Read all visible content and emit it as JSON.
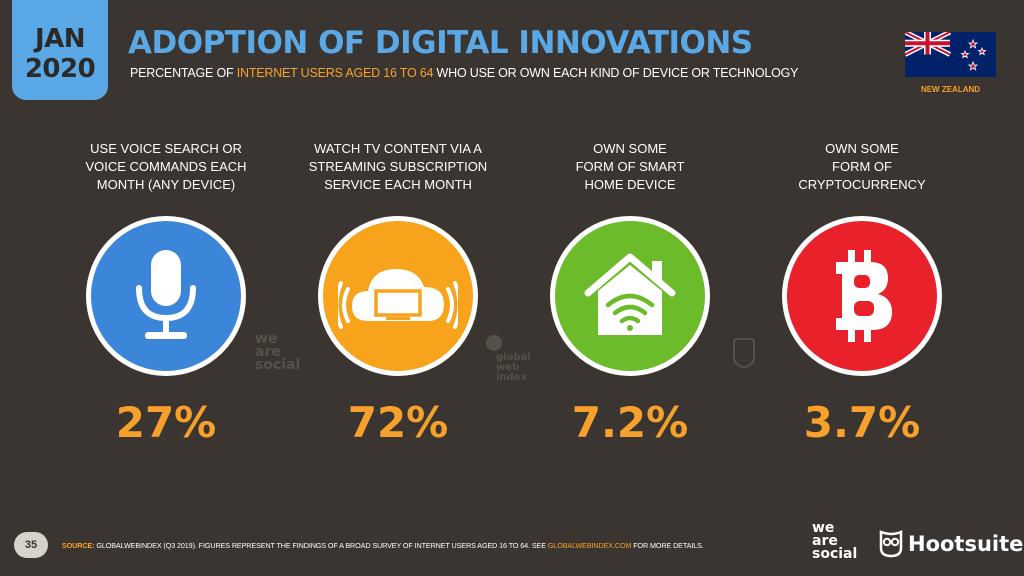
{
  "header": {
    "date_month": "JAN",
    "date_year": "2020",
    "title": "ADOPTION OF DIGITAL INNOVATIONS",
    "subtitle_pre": "PERCENTAGE OF ",
    "subtitle_highlight": "INTERNET USERS AGED 16 TO 64",
    "subtitle_post": " WHO USE OR OWN EACH KIND OF DEVICE OR TECHNOLOGY",
    "country": "NEW ZEALAND"
  },
  "items": [
    {
      "caption_lines": [
        "USE VOICE SEARCH OR",
        "VOICE COMMANDS EACH",
        "MONTH (ANY DEVICE)"
      ],
      "value": "27%",
      "icon": "microphone-icon",
      "color": "#3b86d9"
    },
    {
      "caption_lines": [
        "WATCH TV CONTENT VIA A",
        "STREAMING SUBSCRIPTION",
        "SERVICE EACH MONTH"
      ],
      "value": "72%",
      "icon": "cloud-tv-icon",
      "color": "#f7a31c"
    },
    {
      "caption_lines": [
        "OWN SOME",
        "FORM OF SMART",
        "HOME DEVICE"
      ],
      "value": "7.2%",
      "icon": "smart-home-icon",
      "color": "#6cbb2a"
    },
    {
      "caption_lines": [
        "OWN SOME",
        "FORM OF",
        "CRYPTOCURRENCY"
      ],
      "value": "3.7%",
      "icon": "bitcoin-icon",
      "color": "#e8212b"
    }
  ],
  "watermarks": {
    "we_are_social": [
      "we",
      "are",
      "social"
    ],
    "global_web_index": [
      "global",
      "web",
      "index"
    ]
  },
  "footer": {
    "page_number": "35",
    "source_label": "SOURCE:",
    "source_text": " GLOBALWEBINDEX (Q3 2019). FIGURES REPRESENT THE FINDINGS OF A BROAD SURVEY OF INTERNET USERS AGED 16 TO 64. SEE ",
    "source_link": "GLOBALWEBINDEX.COM",
    "source_end": " FOR MORE DETAILS.",
    "logo_ws": [
      "we",
      "are",
      "social"
    ],
    "logo_hs": "Hootsuite"
  },
  "colors": {
    "accent_blue": "#5aa9e6",
    "accent_orange": "#f7a12c",
    "background": "#3a3530"
  }
}
